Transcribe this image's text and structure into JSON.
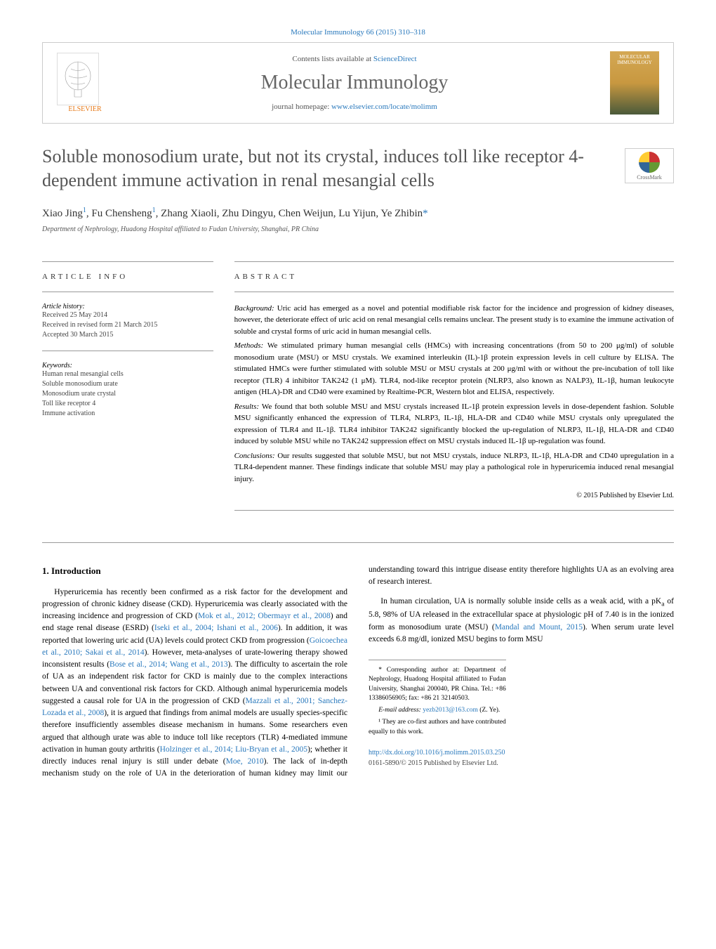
{
  "header": {
    "citation": "Molecular Immunology 66 (2015) 310–318",
    "contents_text": "Contents lists available at ",
    "contents_link": "ScienceDirect",
    "journal_name": "Molecular Immunology",
    "homepage_text": "journal homepage: ",
    "homepage_link": "www.elsevier.com/locate/molimm",
    "publisher_name": "ELSEVIER",
    "cover_label": "MOLECULAR IMMUNOLOGY",
    "colors": {
      "link": "#2878bc",
      "elsevier_orange": "#e67817",
      "title_gray": "#555555"
    }
  },
  "title": "Soluble monosodium urate, but not its crystal, induces toll like receptor 4-dependent immune activation in renal mesangial cells",
  "crossmark_label": "CrossMark",
  "authors_html": "Xiao Jing<sup>1</sup>, Fu Chensheng<sup>1</sup>, Zhang Xiaoli, Zhu Dingyu, Chen Weijun, Lu Yijun, Ye Zhibin<span class='ast'>*</span>",
  "affiliation": "Department of Nephrology, Huadong Hospital affiliated to Fudan University, Shanghai, PR China",
  "article_info": {
    "heading": "ARTICLE INFO",
    "history_label": "Article history:",
    "history": [
      "Received 25 May 2014",
      "Received in revised form 21 March 2015",
      "Accepted 30 March 2015"
    ],
    "keywords_label": "Keywords:",
    "keywords": [
      "Human renal mesangial cells",
      "Soluble monosodium urate",
      "Monosodium urate crystal",
      "Toll like receptor 4",
      "Immune activation"
    ]
  },
  "abstract": {
    "heading": "ABSTRACT",
    "sections": [
      {
        "label": "Background:",
        "text": "Uric acid has emerged as a novel and potential modifiable risk factor for the incidence and progression of kidney diseases, however, the deteriorate effect of uric acid on renal mesangial cells remains unclear. The present study is to examine the immune activation of soluble and crystal forms of uric acid in human mesangial cells."
      },
      {
        "label": "Methods:",
        "text": "We stimulated primary human mesangial cells (HMCs) with increasing concentrations (from 50 to 200 μg/ml) of soluble monosodium urate (MSU) or MSU crystals. We examined interleukin (IL)-1β protein expression levels in cell culture by ELISA. The stimulated HMCs were further stimulated with soluble MSU or MSU crystals at 200 μg/ml with or without the pre-incubation of toll like receptor (TLR) 4 inhibitor TAK242 (1 μM). TLR4, nod-like receptor protein (NLRP3, also known as NALP3), IL-1β, human leukocyte antigen (HLA)-DR and CD40 were examined by Realtime-PCR, Western blot and ELISA, respectively."
      },
      {
        "label": "Results:",
        "text": "We found that both soluble MSU and MSU crystals increased IL-1β protein expression levels in dose-dependent fashion. Soluble MSU significantly enhanced the expression of TLR4, NLRP3, IL-1β, HLA-DR and CD40 while MSU crystals only upregulated the expression of TLR4 and IL-1β. TLR4 inhibitor TAK242 significantly blocked the up-regulation of NLRP3, IL-1β, HLA-DR and CD40 induced by soluble MSU while no TAK242 suppression effect on MSU crystals induced IL-1β up-regulation was found."
      },
      {
        "label": "Conclusions:",
        "text": "Our results suggested that soluble MSU, but not MSU crystals, induce NLRP3, IL-1β, HLA-DR and CD40 upregulation in a TLR4-dependent manner. These findings indicate that soluble MSU may play a pathological role in hyperuricemia induced renal mesangial injury."
      }
    ],
    "copyright": "© 2015 Published by Elsevier Ltd."
  },
  "body": {
    "section_number": "1.",
    "section_title": "Introduction",
    "paragraphs": [
      "Hyperuricemia has recently been confirmed as a risk factor for the development and progression of chronic kidney disease (CKD). Hyperuricemia was clearly associated with the increasing incidence and progression of CKD (<a>Mok et al., 2012; Obermayr et al., 2008</a>) and end stage renal disease (ESRD) (<a>Iseki et al., 2004; Ishani et al., 2006</a>). In addition, it was reported that lowering uric acid (UA) levels could protect CKD from progression (<a>Goicoechea et al., 2010; Sakai et al., 2014</a>). However, meta-analyses of urate-lowering therapy showed inconsistent results (<a>Bose et al., 2014; Wang et al., 2013</a>). The difficulty to ascertain the role of UA as an independent risk factor for CKD is mainly due to the complex interactions between UA and conventional risk factors for CKD. Although animal hyperuricemia models suggested a causal role for UA in the progression of CKD (<a>Mazzali et al., 2001; Sanchez-Lozada et al., 2008</a>), it is argued that findings from animal models are usually species-specific therefore insufficiently assembles disease mechanism in humans. Some researchers even argued that although urate was able to induce toll like receptors (TLR) 4-mediated immune activation in human gouty arthritis (<a>Holzinger et al., 2014; Liu-Bryan et al., 2005</a>); whether it directly induces renal injury is still under debate (<a>Moe, 2010</a>). The lack of in-depth mechanism study on the role of UA in the deterioration of human kidney may limit our understanding toward this intrigue disease entity therefore highlights UA as an evolving area of research interest.",
      "In human circulation, UA is normally soluble inside cells as a weak acid, with a pK<sub>a</sub> of 5.8, 98% of UA released in the extracellular space at physiologic pH of 7.40 is in the ionized form as monosodium urate (MSU) (<a>Mandal and Mount, 2015</a>). When serum urate level exceeds 6.8 mg/dl, ionized MSU begins to form MSU"
    ]
  },
  "footnotes": {
    "corresponding": "* Corresponding author at: Department of Nephrology, Huadong Hospital affiliated to Fudan University, Shanghai 200040, PR China. Tel.: +86 13386056905; fax: +86 21 32140503.",
    "email_label": "E-mail address: ",
    "email": "yezb2013@163.com",
    "email_author": " (Z. Ye).",
    "cofirst": "¹ They are co-first authors and have contributed equally to this work."
  },
  "footer": {
    "doi": "http://dx.doi.org/10.1016/j.molimm.2015.03.250",
    "issn": "0161-5890/© 2015 Published by Elsevier Ltd."
  }
}
